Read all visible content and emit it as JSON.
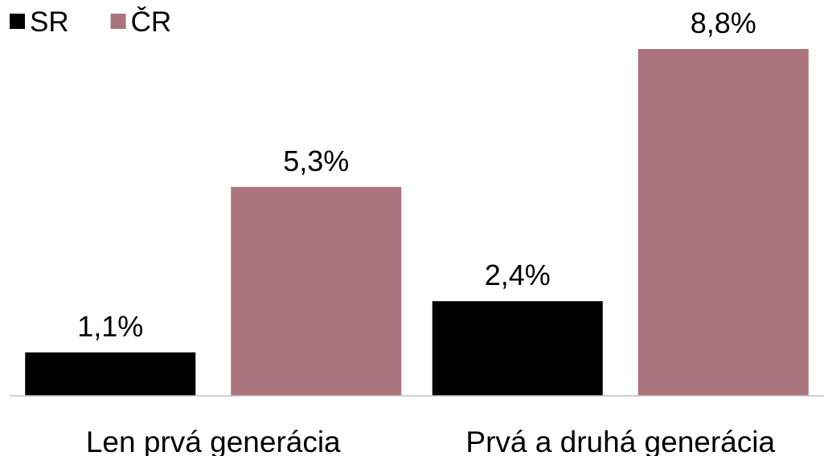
{
  "chart_data": {
    "type": "bar",
    "categories": [
      "Len prvá generácia",
      "Prvá a druhá generácia"
    ],
    "series": [
      {
        "name": "SR",
        "color": "#000000",
        "values": [
          1.1,
          2.4
        ],
        "value_labels": [
          "1,1%",
          "2,4%"
        ]
      },
      {
        "name": "ČR",
        "color": "#ab747c",
        "values": [
          5.3,
          8.8
        ],
        "value_labels": [
          "5,3%",
          "8,8%"
        ]
      }
    ],
    "legend": "top-left"
  }
}
